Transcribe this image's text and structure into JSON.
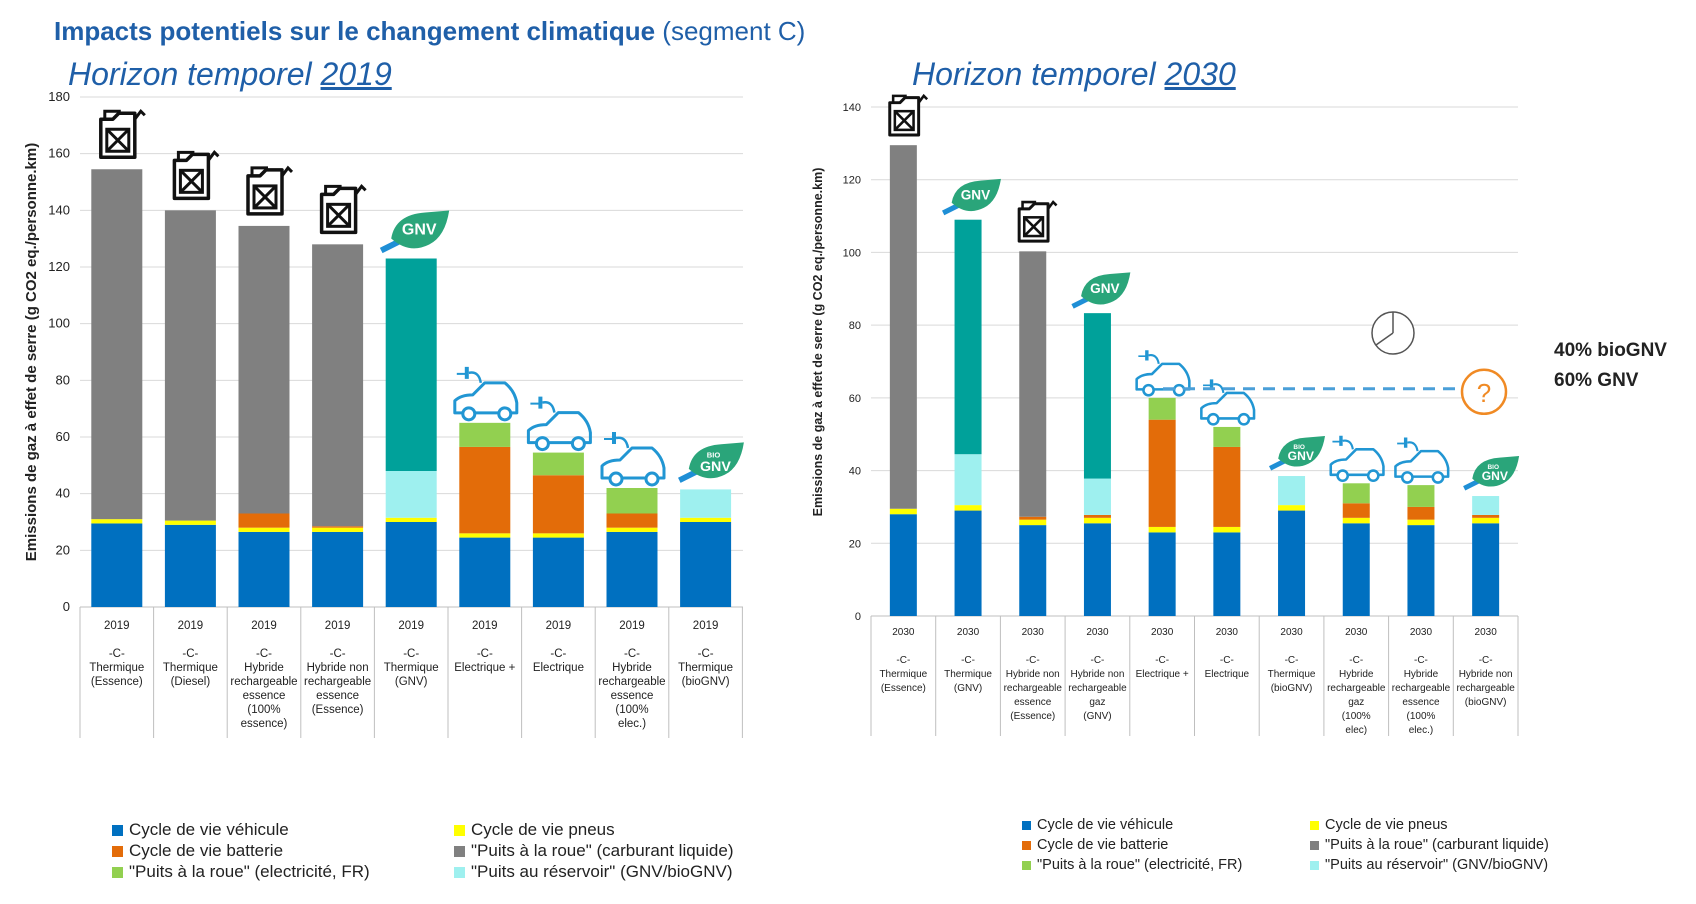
{
  "header": {
    "title_bold": "Impacts potentiels sur le changement climatique",
    "title_rest": "(segment C)",
    "left_subtitle_prefix": "Horizon temporel",
    "left_subtitle_year": "2019",
    "right_subtitle_prefix": "Horizon temporel",
    "right_subtitle_year": "2030"
  },
  "colors": {
    "vehicule": "#0070c0",
    "pneus": "#ffff00",
    "batterie": "#e36c09",
    "carburant": "#808080",
    "elec": "#92d050",
    "reservoir": "#9ef0ef",
    "gnv_teal": "#00a19a",
    "accent": "#1f5fa8",
    "question": "#f08a24"
  },
  "legend": {
    "items": [
      {
        "key": "vehicule",
        "label": "Cycle de vie véhicule"
      },
      {
        "key": "pneus",
        "label": "Cycle de vie pneus"
      },
      {
        "key": "batterie",
        "label": "Cycle de vie batterie"
      },
      {
        "key": "carburant",
        "label": "\"Puits à la roue\" (carburant liquide)"
      },
      {
        "key": "elec",
        "label": "\"Puits à la roue\" (electricité, FR)"
      },
      {
        "key": "reservoir",
        "label": "\"Puits au réservoir\" (GNV/bioGNV)"
      }
    ]
  },
  "annotation": {
    "line1": "40% bioGNV",
    "line2": "60% GNV",
    "question_mark": "?"
  },
  "icons": {
    "fuel": "fuel-can-icon",
    "gnv": "gnv-leaf-icon",
    "biognv": "biognv-leaf-icon",
    "electric_car": "electric-car-icon",
    "pie": "pie-chart-icon",
    "gnv_label": "GNV",
    "bio_label": "BIO"
  },
  "chart_data": [
    {
      "type": "bar",
      "stacked": true,
      "ylabel": "Emissions de gaz à effet de serre (g CO2 eq./personne.km)",
      "ylim": [
        0,
        180
      ],
      "yticks": [
        0,
        20,
        40,
        60,
        80,
        100,
        120,
        140,
        160,
        180
      ],
      "grid": true,
      "categories": [
        {
          "year": "2019",
          "lines": [
            "-C-",
            "Thermique",
            "(Essence)"
          ],
          "icon": "fuel"
        },
        {
          "year": "2019",
          "lines": [
            "-C-",
            "Thermique",
            "(Diesel)"
          ],
          "icon": "fuel"
        },
        {
          "year": "2019",
          "lines": [
            "-C-",
            "Hybride",
            "rechargeable",
            "essence",
            "(100%",
            "essence)"
          ],
          "icon": "fuel"
        },
        {
          "year": "2019",
          "lines": [
            "-C-",
            "Hybride non",
            "rechargeable",
            "essence",
            "(Essence)"
          ],
          "icon": "fuel"
        },
        {
          "year": "2019",
          "lines": [
            "-C-",
            "Thermique",
            "(GNV)"
          ],
          "icon": "gnv"
        },
        {
          "year": "2019",
          "lines": [
            "-C-",
            "Electrique +"
          ],
          "icon": "electric_car"
        },
        {
          "year": "2019",
          "lines": [
            "-C-",
            "Electrique"
          ],
          "icon": "electric_car"
        },
        {
          "year": "2019",
          "lines": [
            "-C-",
            "Hybride",
            "rechargeable",
            "essence",
            "(100%",
            "elec.)"
          ],
          "icon": "electric_car"
        },
        {
          "year": "2019",
          "lines": [
            "-C-",
            "Thermique",
            "(bioGNV)"
          ],
          "icon": "biognv"
        }
      ],
      "series": [
        {
          "key": "vehicule",
          "name": "Cycle de vie véhicule",
          "values": [
            29.5,
            29,
            26.5,
            26.5,
            30,
            24.5,
            24.5,
            26.5,
            30
          ]
        },
        {
          "key": "pneus",
          "name": "Cycle de vie pneus",
          "values": [
            1.5,
            1.5,
            1.5,
            1.5,
            1.5,
            1.5,
            1.5,
            1.5,
            1.5
          ]
        },
        {
          "key": "batterie",
          "name": "Cycle de vie batterie",
          "values": [
            0,
            0,
            5,
            0.5,
            0,
            30.5,
            20.5,
            5,
            0
          ]
        },
        {
          "key": "carburant",
          "name": "\"Puits à la roue\" (carburant liquide)",
          "values": [
            123.5,
            109.5,
            101.5,
            99.5,
            0,
            0,
            0,
            0,
            0
          ]
        },
        {
          "key": "elec",
          "name": "\"Puits à la roue\" (electricité, FR)",
          "values": [
            0,
            0,
            0,
            0,
            0,
            8.5,
            8,
            9,
            0
          ]
        },
        {
          "key": "reservoir",
          "name": "\"Puits au réservoir\" (GNV/bioGNV)",
          "values": [
            0,
            0,
            0,
            0,
            16.5,
            0,
            0,
            0,
            10
          ]
        },
        {
          "key": "gnv_teal",
          "name": "",
          "values": [
            0,
            0,
            0,
            0,
            75,
            0,
            0,
            0,
            0
          ]
        }
      ]
    },
    {
      "type": "bar",
      "stacked": true,
      "ylabel": "Emissions de gaz à effet de serre (g CO2 eq./personne.km)",
      "ylim": [
        0,
        140
      ],
      "yticks": [
        0,
        20,
        40,
        60,
        80,
        100,
        120,
        140
      ],
      "grid": true,
      "categories": [
        {
          "year": "2030",
          "lines": [
            "-C-",
            "Thermique",
            "(Essence)"
          ],
          "icon": "fuel"
        },
        {
          "year": "2030",
          "lines": [
            "-C-",
            "Thermique",
            "(GNV)"
          ],
          "icon": "gnv"
        },
        {
          "year": "2030",
          "lines": [
            "-C-",
            "Hybride non",
            "rechargeable",
            "essence",
            "(Essence)"
          ],
          "icon": "fuel"
        },
        {
          "year": "2030",
          "lines": [
            "-C-",
            "Hybride non",
            "rechargeable",
            "gaz",
            "(GNV)"
          ],
          "icon": "gnv"
        },
        {
          "year": "2030",
          "lines": [
            "-C-",
            "Electrique +"
          ],
          "icon": "electric_car"
        },
        {
          "year": "2030",
          "lines": [
            "-C-",
            "Electrique"
          ],
          "icon": "electric_car"
        },
        {
          "year": "2030",
          "lines": [
            "-C-",
            "Thermique",
            "(bioGNV)"
          ],
          "icon": "biognv"
        },
        {
          "year": "2030",
          "lines": [
            "-C-",
            "Hybride",
            "rechargeable",
            "gaz",
            "(100%",
            "elec)"
          ],
          "icon": "electric_car"
        },
        {
          "year": "2030",
          "lines": [
            "-C-",
            "Hybride",
            "rechargeable",
            "essence",
            "(100%",
            "elec.)"
          ],
          "icon": "electric_car"
        },
        {
          "year": "2030",
          "lines": [
            "-C-",
            "Hybride non",
            "rechargeable",
            "(bioGNV)"
          ],
          "icon": "biognv"
        }
      ],
      "series": [
        {
          "key": "vehicule",
          "name": "Cycle de vie véhicule",
          "values": [
            28,
            29,
            25,
            25.5,
            23,
            23,
            29,
            25.5,
            25,
            25.5
          ]
        },
        {
          "key": "pneus",
          "name": "Cycle de vie pneus",
          "values": [
            1.5,
            1.5,
            1.5,
            1.5,
            1.5,
            1.5,
            1.5,
            1.5,
            1.5,
            1.5
          ]
        },
        {
          "key": "batterie",
          "name": "Cycle de vie batterie",
          "values": [
            0,
            0,
            0.8,
            0.8,
            29.5,
            22,
            0,
            4,
            3.5,
            0.8
          ]
        },
        {
          "key": "carburant",
          "name": "\"Puits à la roue\" (carburant liquide)",
          "values": [
            100,
            0,
            73,
            0,
            0,
            0,
            0,
            0,
            0,
            0
          ]
        },
        {
          "key": "elec",
          "name": "\"Puits à la roue\" (electricité, FR)",
          "values": [
            0,
            0,
            0,
            0,
            6,
            5.5,
            0,
            5.5,
            6,
            0
          ]
        },
        {
          "key": "reservoir",
          "name": "\"Puits au réservoir\" (GNV/bioGNV)",
          "values": [
            0,
            14,
            0,
            10,
            0,
            0,
            8,
            0,
            0,
            5.2
          ]
        },
        {
          "key": "gnv_teal",
          "name": "",
          "values": [
            0,
            64.5,
            0,
            45.5,
            0,
            0,
            0,
            0,
            0,
            0
          ]
        }
      ],
      "reference_line": 62.5
    }
  ]
}
